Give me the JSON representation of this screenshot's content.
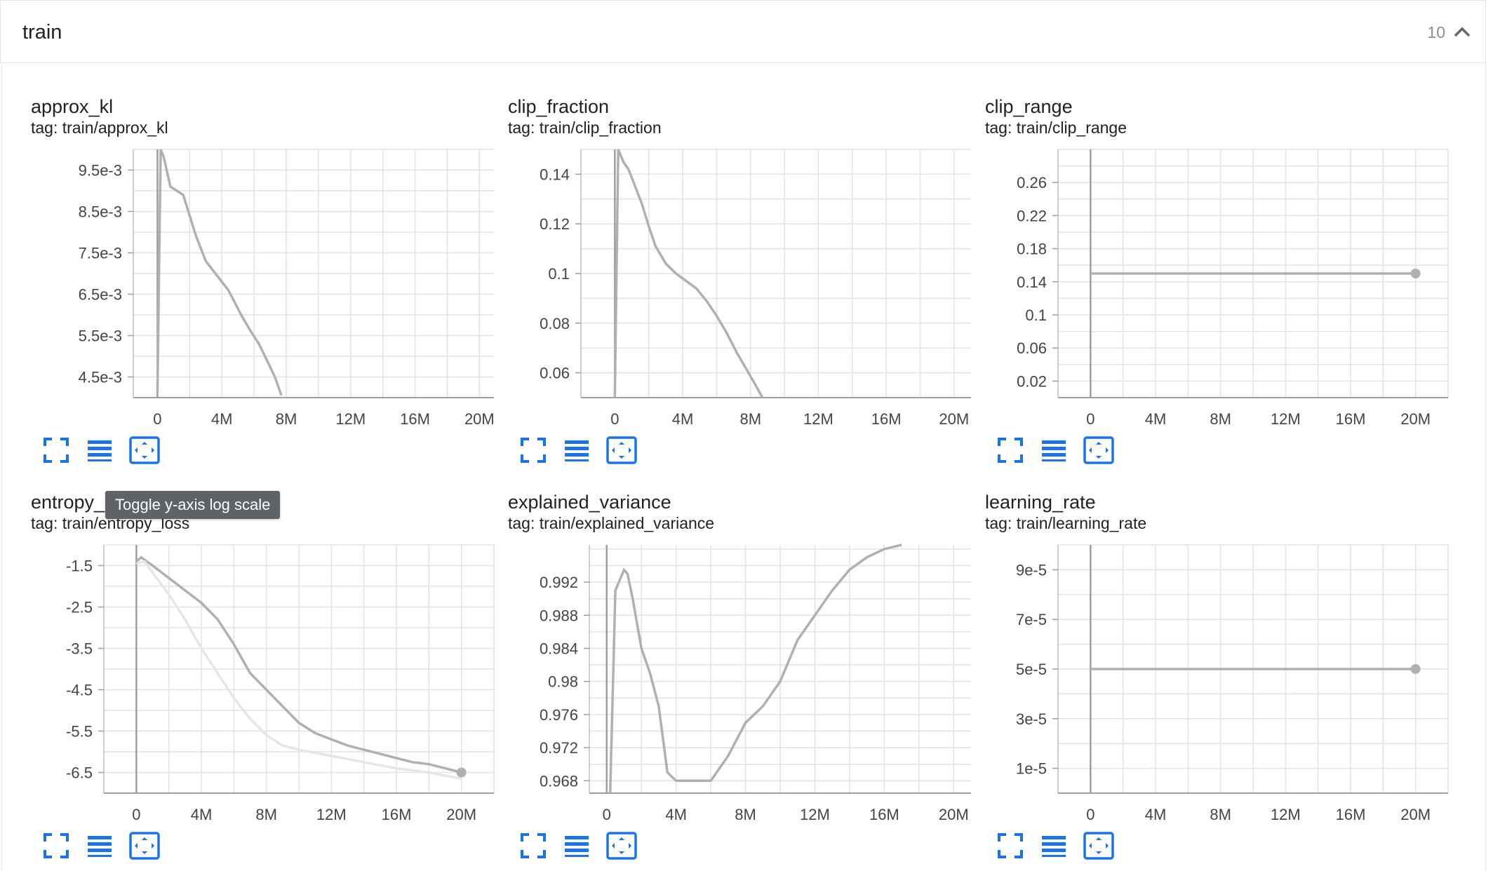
{
  "section": {
    "title": "train",
    "count": "10"
  },
  "tooltip": "Toggle y-axis log scale",
  "colors": {
    "accent": "#1a73e8",
    "series": "#b0b0b0",
    "raw": "#e8e8e8",
    "grid": "#e0e0e0"
  },
  "cards": [
    {
      "title": "approx_kl",
      "tag": "tag: train/approx_kl"
    },
    {
      "title": "clip_fraction",
      "tag": "tag: train/clip_fraction"
    },
    {
      "title": "clip_range",
      "tag": "tag: train/clip_range"
    },
    {
      "title": "entropy_",
      "tag": "tag: train/entropy_loss"
    },
    {
      "title": "explained_variance",
      "tag": "tag: train/explained_variance"
    },
    {
      "title": "learning_rate",
      "tag": "tag: train/learning_rate"
    }
  ],
  "chart_data": [
    {
      "type": "line",
      "title": "approx_kl",
      "xlim": [
        -1500000,
        20900000
      ],
      "ylim": [
        0.004,
        0.01
      ],
      "xticks": [
        0,
        4000000,
        8000000,
        12000000,
        16000000,
        20000000
      ],
      "xtick_labels": [
        "0",
        "4M",
        "8M",
        "12M",
        "16M",
        "20M"
      ],
      "yticks": [
        0.0045,
        0.0055,
        0.0065,
        0.0075,
        0.0085,
        0.0095
      ],
      "ytick_labels": [
        "4.5e-3",
        "5.5e-3",
        "6.5e-3",
        "7.5e-3",
        "8.5e-3",
        "9.5e-3"
      ],
      "series": [
        {
          "x": [
            0,
            200000,
            400000,
            800000,
            1200000,
            1600000,
            2000000,
            2400000,
            3000000,
            3600000,
            4000000,
            4400000,
            4800000,
            5200000,
            5800000,
            6300000,
            6800000,
            7300000,
            7700000
          ],
          "y": [
            0.0041,
            0.0105,
            0.0098,
            0.0091,
            0.009,
            0.0089,
            0.0084,
            0.0079,
            0.0073,
            0.007,
            0.0068,
            0.0066,
            0.0063,
            0.006,
            0.0056,
            0.0053,
            0.0049,
            0.0045,
            0.00405
          ]
        }
      ],
      "endpoint": false
    },
    {
      "type": "line",
      "title": "clip_fraction",
      "xlim": [
        -2000000,
        21000000
      ],
      "ylim": [
        0.05,
        0.15
      ],
      "xticks": [
        0,
        4000000,
        8000000,
        12000000,
        16000000,
        20000000
      ],
      "xtick_labels": [
        "0",
        "4M",
        "8M",
        "12M",
        "16M",
        "20M"
      ],
      "yticks": [
        0.06,
        0.08,
        0.1,
        0.12,
        0.14
      ],
      "ytick_labels": [
        "0.06",
        "0.08",
        "0.1",
        "0.12",
        "0.14"
      ],
      "series": [
        {
          "x": [
            0,
            200000,
            500000,
            800000,
            1200000,
            1600000,
            2000000,
            2400000,
            3000000,
            3600000,
            4200000,
            4800000,
            5400000,
            6000000,
            6600000,
            7200000,
            7800000,
            8300000,
            8700000
          ],
          "y": [
            0.05,
            0.152,
            0.145,
            0.142,
            0.135,
            0.128,
            0.119,
            0.111,
            0.104,
            0.1,
            0.097,
            0.094,
            0.089,
            0.083,
            0.076,
            0.068,
            0.061,
            0.055,
            0.05
          ]
        }
      ],
      "endpoint": false
    },
    {
      "type": "line",
      "title": "clip_range",
      "xlim": [
        -2000000,
        22000000
      ],
      "ylim": [
        0,
        0.3
      ],
      "xticks": [
        0,
        4000000,
        8000000,
        12000000,
        16000000,
        20000000
      ],
      "xtick_labels": [
        "0",
        "4M",
        "8M",
        "12M",
        "16M",
        "20M"
      ],
      "yticks": [
        0.02,
        0.06,
        0.1,
        0.14,
        0.18,
        0.22,
        0.26
      ],
      "ytick_labels": [
        "0.02",
        "0.06",
        "0.1",
        "0.14",
        "0.18",
        "0.22",
        "0.26"
      ],
      "series": [
        {
          "x": [
            0,
            20000000
          ],
          "y": [
            0.15,
            0.15
          ]
        }
      ],
      "endpoint": true
    },
    {
      "type": "line",
      "title": "entropy_",
      "xlim": [
        -2000000,
        22000000
      ],
      "ylim": [
        -7,
        -1
      ],
      "xticks": [
        0,
        4000000,
        8000000,
        12000000,
        16000000,
        20000000
      ],
      "xtick_labels": [
        "0",
        "4M",
        "8M",
        "12M",
        "16M",
        "20M"
      ],
      "yticks": [
        -6.5,
        -5.5,
        -4.5,
        -3.5,
        -2.5,
        -1.5
      ],
      "ytick_labels": [
        "-6.5",
        "-5.5",
        "-4.5",
        "-3.5",
        "-2.5",
        "-1.5"
      ],
      "series": [
        {
          "x": [
            0,
            300000,
            1000000,
            2000000,
            3000000,
            4000000,
            5000000,
            6000000,
            7000000,
            8000000,
            9000000,
            10000000,
            11000000,
            12000000,
            13000000,
            14000000,
            15000000,
            16000000,
            17000000,
            18000000,
            19000000,
            20000000
          ],
          "y": [
            -1.4,
            -1.3,
            -1.5,
            -1.8,
            -2.1,
            -2.4,
            -2.8,
            -3.4,
            -4.1,
            -4.5,
            -4.9,
            -5.3,
            -5.55,
            -5.7,
            -5.85,
            -5.95,
            -6.05,
            -6.15,
            -6.25,
            -6.3,
            -6.4,
            -6.5
          ]
        },
        {
          "x": [
            0,
            500000,
            2000000,
            3000000,
            4000000,
            5000000,
            6000000,
            7000000,
            8000000,
            9000000,
            10000000,
            12000000,
            14000000,
            16000000,
            18000000,
            20000000
          ],
          "y": [
            -1.45,
            -1.4,
            -2.2,
            -2.8,
            -3.5,
            -4.1,
            -4.7,
            -5.2,
            -5.6,
            -5.85,
            -5.95,
            -6.1,
            -6.25,
            -6.4,
            -6.5,
            -6.65
          ]
        }
      ],
      "endpoint": true
    },
    {
      "type": "line",
      "title": "explained_variance",
      "xlim": [
        -1000000,
        21000000
      ],
      "ylim": [
        0.9665,
        0.9965
      ],
      "xticks": [
        0,
        4000000,
        8000000,
        12000000,
        16000000,
        20000000
      ],
      "xtick_labels": [
        "0",
        "4M",
        "8M",
        "12M",
        "16M",
        "20M"
      ],
      "yticks": [
        0.968,
        0.972,
        0.976,
        0.98,
        0.984,
        0.988,
        0.992
      ],
      "ytick_labels": [
        "0.968",
        "0.972",
        "0.976",
        "0.98",
        "0.984",
        "0.988",
        "0.992"
      ],
      "series": [
        {
          "x": [
            200000,
            500000,
            1000000,
            1200000,
            1500000,
            2000000,
            2500000,
            3000000,
            3500000,
            4000000,
            5000000,
            6000000,
            7000000,
            8000000,
            9000000,
            10000000,
            11000000,
            12000000,
            13000000,
            14000000,
            15000000,
            16000000,
            17000000
          ],
          "y": [
            0.966,
            0.991,
            0.9935,
            0.993,
            0.99,
            0.984,
            0.981,
            0.977,
            0.969,
            0.968,
            0.968,
            0.968,
            0.971,
            0.975,
            0.977,
            0.98,
            0.985,
            0.988,
            0.991,
            0.9935,
            0.995,
            0.996,
            0.9965
          ]
        }
      ],
      "endpoint": false
    },
    {
      "type": "line",
      "title": "learning_rate",
      "xlim": [
        -2000000,
        22000000
      ],
      "ylim": [
        0,
        0.0001
      ],
      "xticks": [
        0,
        4000000,
        8000000,
        12000000,
        16000000,
        20000000
      ],
      "xtick_labels": [
        "0",
        "4M",
        "8M",
        "12M",
        "16M",
        "20M"
      ],
      "yticks": [
        1e-05,
        3e-05,
        5e-05,
        7e-05,
        9e-05
      ],
      "ytick_labels": [
        "1e-5",
        "3e-5",
        "5e-5",
        "7e-5",
        "9e-5"
      ],
      "series": [
        {
          "x": [
            0,
            20000000
          ],
          "y": [
            5e-05,
            5e-05
          ]
        }
      ],
      "endpoint": true
    }
  ]
}
